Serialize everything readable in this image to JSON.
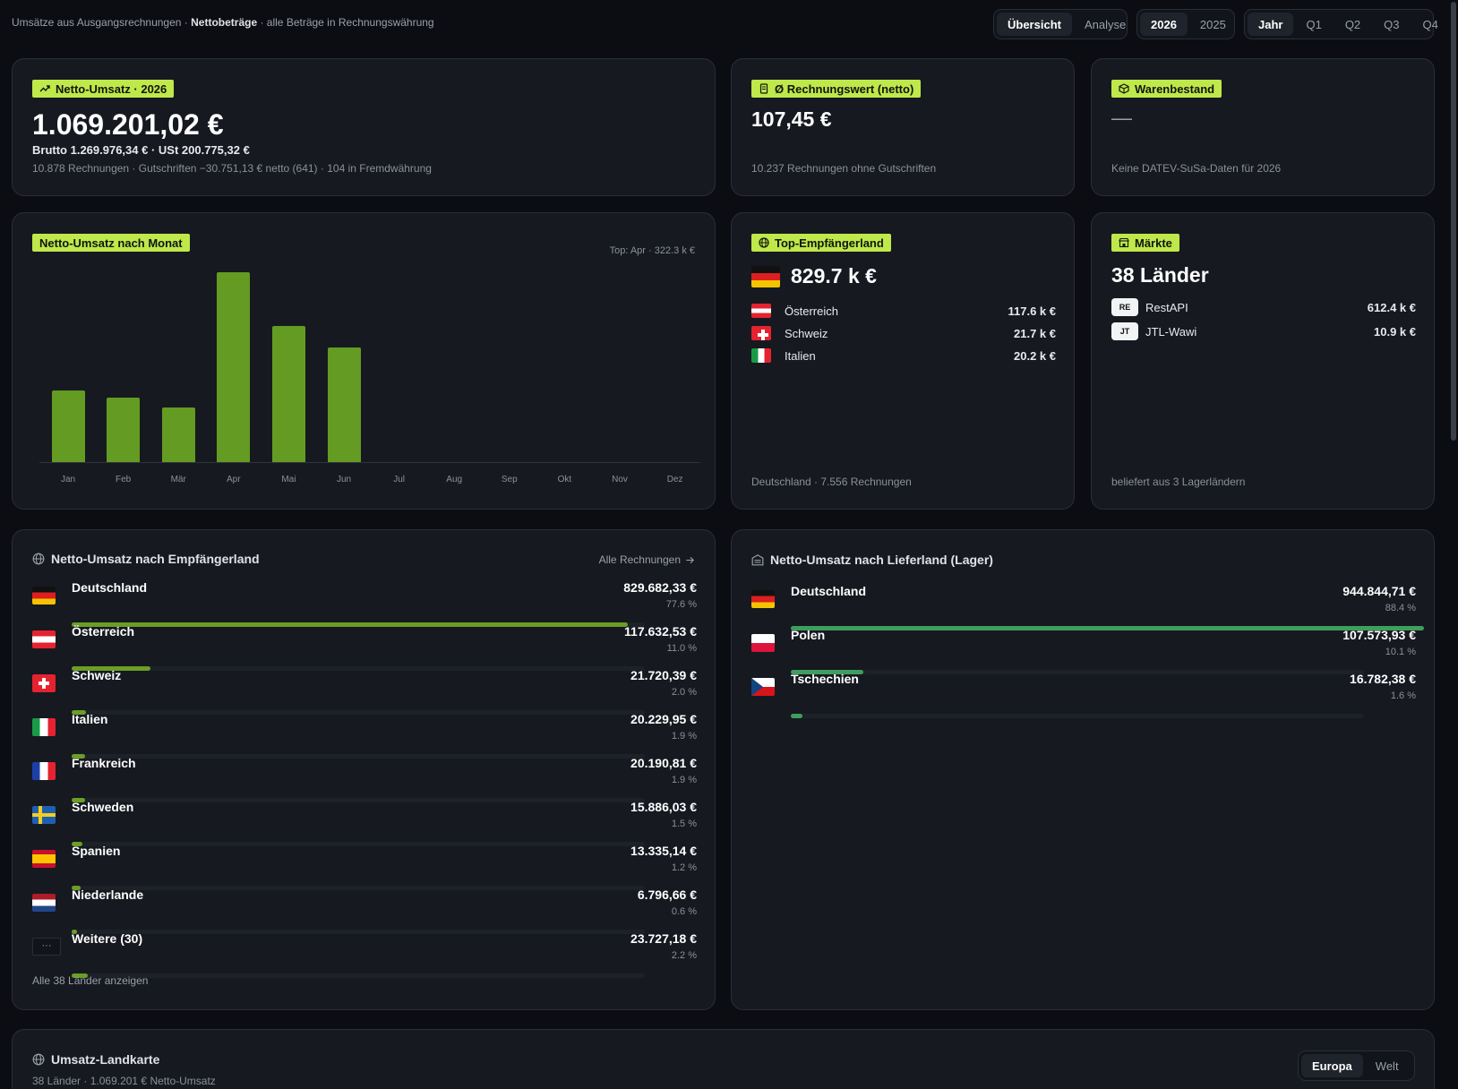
{
  "header": {
    "subtitle_pre": "Umsätze aus Ausgangsrechnungen · ",
    "subtitle_bold": "Nettobeträge",
    "subtitle_post": " · alle Beträge in Rechnungswährung",
    "view_tabs": [
      "Übersicht",
      "Analyse"
    ],
    "year_tabs": [
      "2026",
      "2025"
    ],
    "period_tabs": [
      "Jahr",
      "Q1",
      "Q2",
      "Q3",
      "Q4"
    ]
  },
  "kpi_revenue": {
    "label": "Netto-Umsatz · 2026",
    "value": "1.069.201,02 €",
    "gross_line": "Brutto 1.269.976,34 € · USt 200.775,32 €",
    "detail": "10.878 Rechnungen · Gutschriften −30.751,13 € netto (641) · 104 in Fremdwährung"
  },
  "kpi_invoice": {
    "label": "Ø Rechnungswert (netto)",
    "value": "107,45 €",
    "detail": "10.237 Rechnungen ohne Gutschriften"
  },
  "kpi_stock": {
    "label": "Warenbestand",
    "value": "—",
    "detail": "Keine DATEV-SuSa-Daten für 2026"
  },
  "monthly": {
    "label": "Netto-Umsatz nach Monat",
    "top_note": "Top: Apr · 322.3 k €"
  },
  "chart_data": {
    "type": "bar",
    "title": "Netto-Umsatz nach Monat",
    "categories": [
      "Jan",
      "Feb",
      "Mär",
      "Apr",
      "Mai",
      "Jun",
      "Jul",
      "Aug",
      "Sep",
      "Okt",
      "Nov",
      "Dez"
    ],
    "values": [
      121,
      110,
      92,
      322.3,
      231,
      194,
      0,
      0,
      0,
      0,
      0,
      0
    ],
    "ylabel": "",
    "xlabel": "",
    "ylim": [
      0,
      322.3
    ],
    "grid": false
  },
  "top_country": {
    "label": "Top-Empfängerland",
    "value": "829.7 k €",
    "others": [
      {
        "name": "Österreich",
        "value": "117.6 k €",
        "flag": "at"
      },
      {
        "name": "Schweiz",
        "value": "21.7 k €",
        "flag": "ch"
      },
      {
        "name": "Italien",
        "value": "20.2 k €",
        "flag": "it"
      }
    ],
    "footer": "Deutschland · 7.556 Rechnungen"
  },
  "markets": {
    "label": "Märkte",
    "value": "38 Länder",
    "items": [
      {
        "tag": "RE",
        "name": "RestAPI",
        "value": "612.4 k €"
      },
      {
        "tag": "JT",
        "name": "JTL-Wawi",
        "value": "10.9 k €"
      }
    ],
    "footer": "beliefert aus 3 Lagerländern"
  },
  "by_recipient": {
    "title": "Netto-Umsatz nach Empfängerland",
    "link": "Alle Rechnungen",
    "rows": [
      {
        "name": "Deutschland",
        "value": "829.682,33 €",
        "pct": "77.6 %",
        "share": 0.776,
        "flag": "de"
      },
      {
        "name": "Österreich",
        "value": "117.632,53 €",
        "pct": "11.0 %",
        "share": 0.11,
        "flag": "at"
      },
      {
        "name": "Schweiz",
        "value": "21.720,39 €",
        "pct": "2.0 %",
        "share": 0.02,
        "flag": "ch"
      },
      {
        "name": "Italien",
        "value": "20.229,95 €",
        "pct": "1.9 %",
        "share": 0.019,
        "flag": "it"
      },
      {
        "name": "Frankreich",
        "value": "20.190,81 €",
        "pct": "1.9 %",
        "share": 0.019,
        "flag": "fr"
      },
      {
        "name": "Schweden",
        "value": "15.886,03 €",
        "pct": "1.5 %",
        "share": 0.015,
        "flag": "se"
      },
      {
        "name": "Spanien",
        "value": "13.335,14 €",
        "pct": "1.2 %",
        "share": 0.012,
        "flag": "es"
      },
      {
        "name": "Niederlande",
        "value": "6.796,66 €",
        "pct": "0.6 %",
        "share": 0.006,
        "flag": "nl"
      },
      {
        "name": "Weitere (30)",
        "value": "23.727,18 €",
        "pct": "2.2 %",
        "share": 0.022,
        "flag": "more",
        "flag_text": "···"
      }
    ],
    "show_all": "Alle 38 Länder anzeigen"
  },
  "by_warehouse": {
    "title": "Netto-Umsatz nach Lieferland (Lager)",
    "rows": [
      {
        "name": "Deutschland",
        "value": "944.844,71 €",
        "pct": "88.4 %",
        "share": 0.884,
        "flag": "de"
      },
      {
        "name": "Polen",
        "value": "107.573,93 €",
        "pct": "10.1 %",
        "share": 0.101,
        "flag": "pl"
      },
      {
        "name": "Tschechien",
        "value": "16.782,38 €",
        "pct": "1.6 %",
        "share": 0.016,
        "flag": "cz"
      }
    ]
  },
  "map": {
    "title": "Umsatz-Landkarte",
    "subtitle": "38 Länder · 1.069.201 € Netto-Umsatz",
    "tabs": [
      "Europa",
      "Welt"
    ]
  },
  "colors": {
    "accent": "#bfe84a",
    "bar": "#649b22",
    "recipient_fill": "#6b9e26",
    "warehouse_fill": "#3f9e5e",
    "background": "#0b0d13",
    "card": "#161920"
  }
}
